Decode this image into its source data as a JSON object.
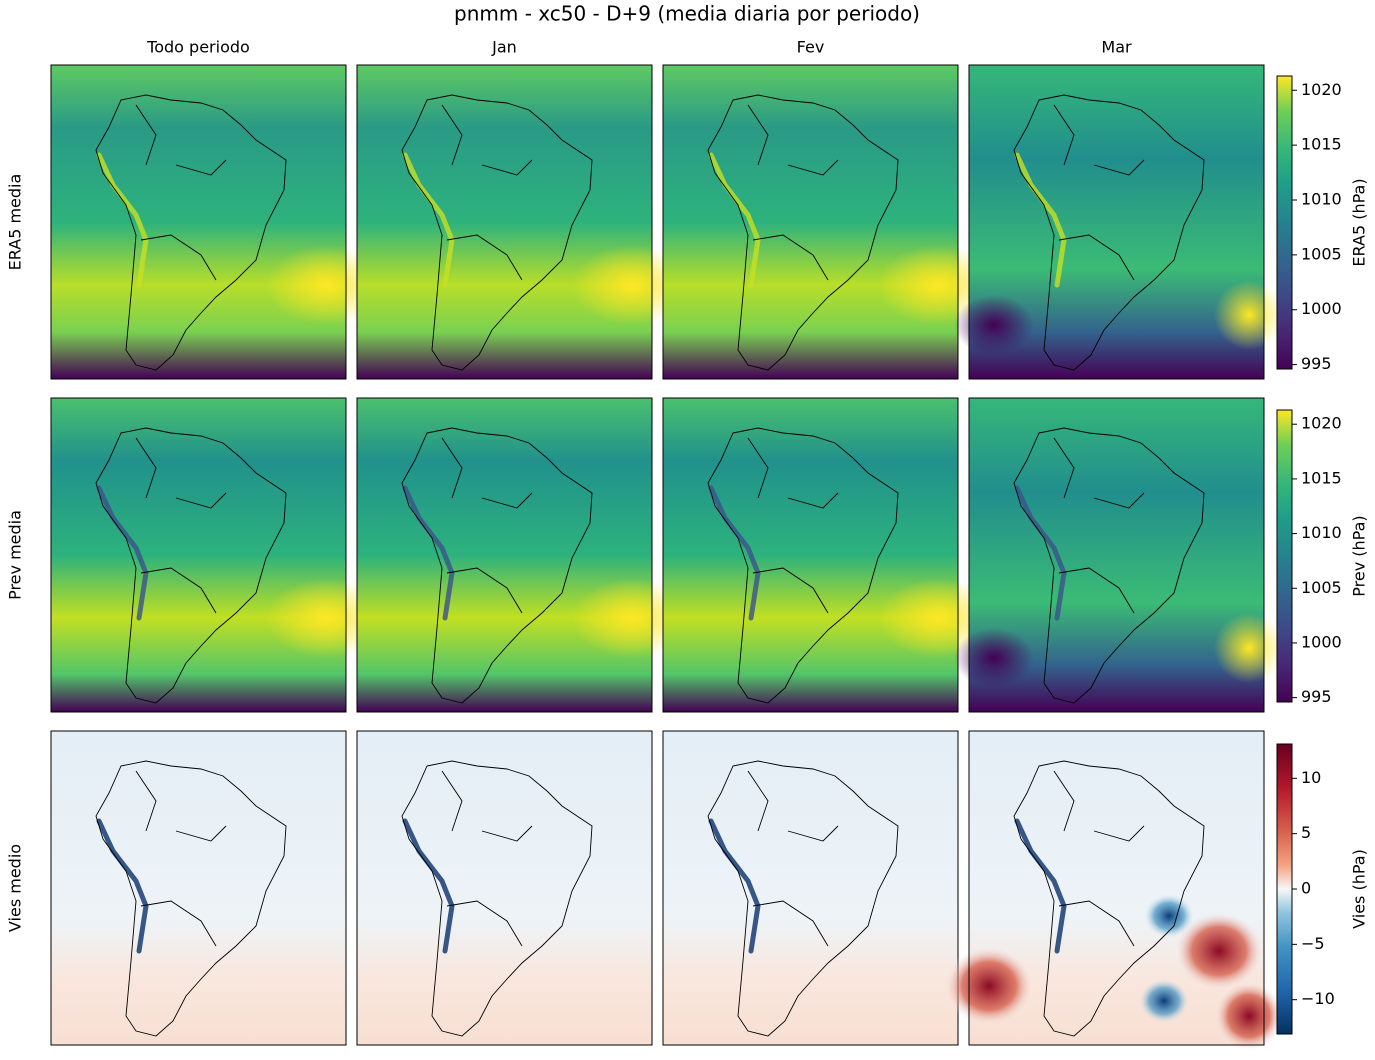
{
  "title": "pnmm - xc50 - D+9 (media diaria por periodo)",
  "columns": [
    "Todo periodo",
    "Jan",
    "Fev",
    "Mar"
  ],
  "rows": [
    {
      "label": "ERA5 media",
      "colorbar": {
        "label": "ERA5 (hPa)",
        "colormap": "viridis",
        "lim": [
          994.6,
          1021.3
        ],
        "ticks": [
          995,
          1000,
          1005,
          1010,
          1015,
          1020
        ]
      }
    },
    {
      "label": "Prev media",
      "colorbar": {
        "label": "Prev (hPa)",
        "colormap": "viridis",
        "lim": [
          994.6,
          1021.3
        ],
        "ticks": [
          995,
          1000,
          1005,
          1010,
          1015,
          1020
        ]
      }
    },
    {
      "label": "Vies medio",
      "colorbar": {
        "label": "Vies (hPa)",
        "colormap": "RdBu_r",
        "lim": [
          -13.1,
          13.1
        ],
        "ticks": [
          {
            "value": -10,
            "label": "−10"
          },
          {
            "value": -5,
            "label": "−5"
          },
          0,
          5,
          10
        ]
      }
    }
  ]
}
